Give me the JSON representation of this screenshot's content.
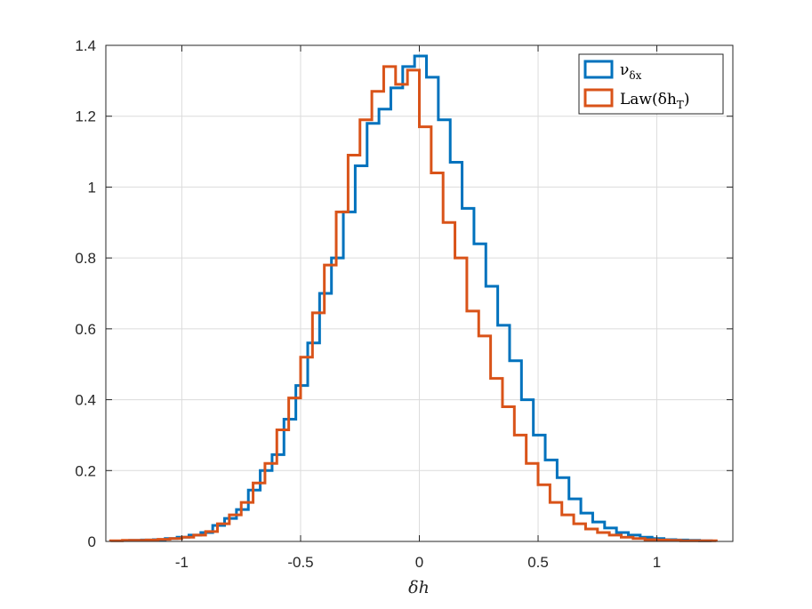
{
  "chart_data": {
    "type": "histogram-stairs",
    "title": "",
    "xlabel": "δh",
    "ylabel": "",
    "xlim": [
      -1.32,
      1.32
    ],
    "ylim": [
      0,
      1.4
    ],
    "xticks": [
      -1,
      -0.5,
      0,
      0.5,
      1
    ],
    "xtick_labels": [
      "-1",
      "-0.5",
      "0",
      "0.5",
      "1"
    ],
    "yticks": [
      0,
      0.2,
      0.4,
      0.6,
      0.8,
      1,
      1.2,
      1.4
    ],
    "ytick_labels": [
      "0",
      "0.2",
      "0.4",
      "0.6",
      "0.8",
      "1",
      "1.2",
      "1.4"
    ],
    "grid": true,
    "legend_position": "top-right",
    "series": [
      {
        "name": "ν",
        "name_subscript": "δx",
        "color": "#0072BD",
        "edges": [
          -1.22,
          -1.17,
          -1.12,
          -1.07,
          -1.02,
          -0.97,
          -0.92,
          -0.87,
          -0.82,
          -0.77,
          -0.72,
          -0.67,
          -0.62,
          -0.57,
          -0.52,
          -0.47,
          -0.42,
          -0.37,
          -0.32,
          -0.27,
          -0.22,
          -0.17,
          -0.12,
          -0.07,
          -0.02,
          0.03,
          0.08,
          0.13,
          0.18,
          0.23,
          0.28,
          0.33,
          0.38,
          0.43,
          0.48,
          0.53,
          0.58,
          0.63,
          0.68,
          0.73,
          0.78,
          0.83,
          0.88,
          0.93,
          0.98,
          1.03,
          1.08,
          1.13,
          1.18,
          1.23
        ],
        "values": [
          0.003,
          0.004,
          0.005,
          0.008,
          0.012,
          0.018,
          0.025,
          0.045,
          0.065,
          0.09,
          0.145,
          0.2,
          0.245,
          0.345,
          0.44,
          0.56,
          0.7,
          0.8,
          0.93,
          1.06,
          1.18,
          1.22,
          1.28,
          1.34,
          1.37,
          1.31,
          1.19,
          1.07,
          0.94,
          0.84,
          0.72,
          0.61,
          0.51,
          0.4,
          0.3,
          0.23,
          0.18,
          0.12,
          0.08,
          0.055,
          0.038,
          0.025,
          0.018,
          0.012,
          0.008,
          0.005,
          0.004,
          0.003,
          0.002
        ]
      },
      {
        "name": "Law(δh",
        "name_subscript": "T",
        "name_suffix": ")",
        "color": "#D95319",
        "edges": [
          -1.3,
          -1.25,
          -1.2,
          -1.15,
          -1.1,
          -1.05,
          -1,
          -0.95,
          -0.9,
          -0.85,
          -0.8,
          -0.75,
          -0.7,
          -0.65,
          -0.6,
          -0.55,
          -0.5,
          -0.45,
          -0.4,
          -0.35,
          -0.3,
          -0.25,
          -0.2,
          -0.15,
          -0.1,
          -0.05,
          0,
          0.05,
          0.1,
          0.15,
          0.2,
          0.25,
          0.3,
          0.35,
          0.4,
          0.45,
          0.5,
          0.55,
          0.6,
          0.65,
          0.7,
          0.75,
          0.8,
          0.85,
          0.9,
          0.95,
          1,
          1.05,
          1.1,
          1.15,
          1.2,
          1.25
        ],
        "values": [
          0.002,
          0.003,
          0.003,
          0.004,
          0.006,
          0.008,
          0.012,
          0.018,
          0.028,
          0.05,
          0.075,
          0.11,
          0.165,
          0.22,
          0.315,
          0.405,
          0.52,
          0.645,
          0.78,
          0.93,
          1.09,
          1.19,
          1.27,
          1.34,
          1.29,
          1.33,
          1.17,
          1.04,
          0.9,
          0.8,
          0.65,
          0.58,
          0.46,
          0.38,
          0.3,
          0.22,
          0.16,
          0.11,
          0.075,
          0.05,
          0.035,
          0.025,
          0.018,
          0.012,
          0.008,
          0.005,
          0.004,
          0.003,
          0.002,
          0.002,
          0.002
        ]
      }
    ]
  }
}
